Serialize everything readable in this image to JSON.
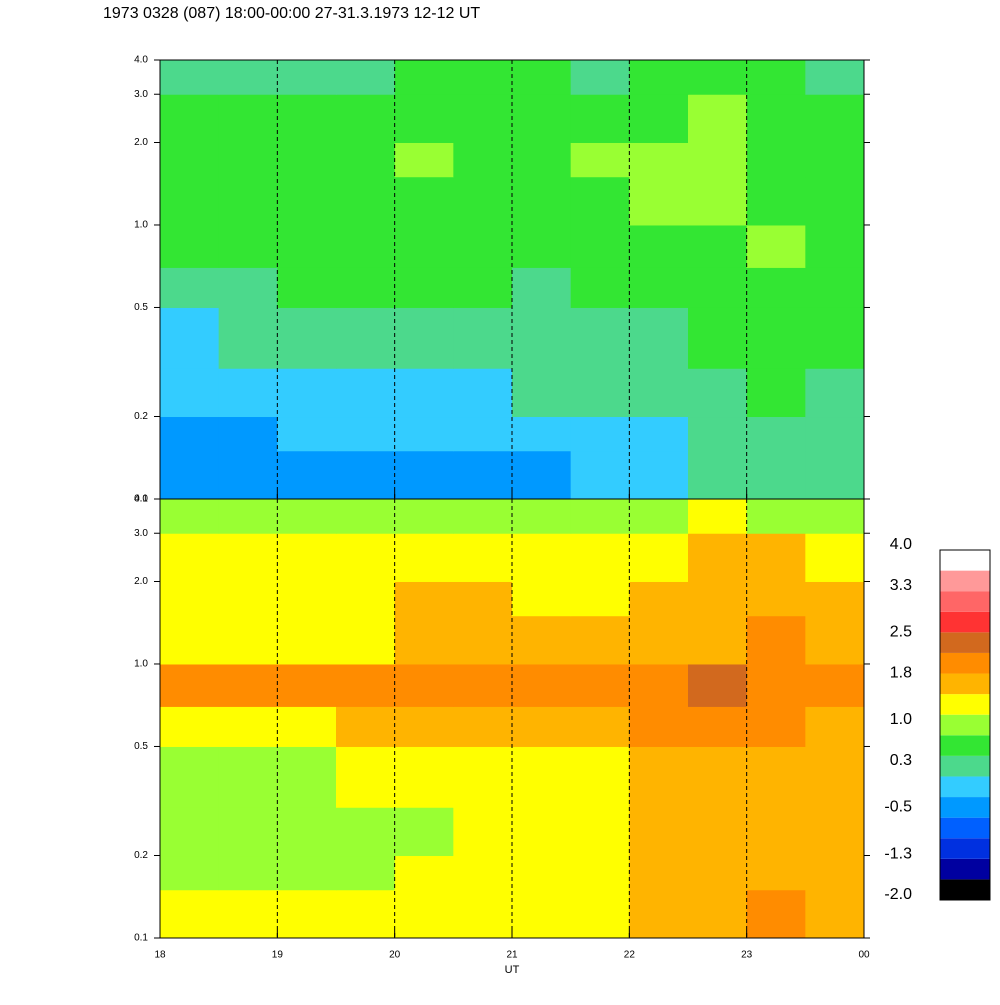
{
  "chart_data": [
    {
      "type": "heatmap",
      "title": "1973 0328 (087) 18:00-00:00 27-31.3.1973  12-12 UT",
      "xlim": [
        18,
        24
      ],
      "xticks": [
        18,
        19,
        20,
        21,
        22,
        23,
        {
          "value": 24,
          "label": "00"
        }
      ],
      "ylim": [
        0.1,
        4.0
      ],
      "ylog": true,
      "grid": true,
      "yticks": [
        0.1,
        0.2,
        0.5,
        {
          "value": 1,
          "label": "1.0"
        },
        {
          "value": 2,
          "label": "2.0"
        },
        {
          "value": 3,
          "label": "3.0"
        },
        {
          "value": 4,
          "label": "4.0"
        }
      ],
      "x_bins": [
        18,
        18.5,
        19,
        19.5,
        20,
        20.5,
        21,
        21.5,
        22,
        22.5,
        23,
        23.5,
        24
      ],
      "y_bins": [
        0.1,
        0.15,
        0.2,
        0.3,
        0.5,
        0.7,
        1.0,
        1.5,
        2.0,
        3.0,
        4.0
      ],
      "values": [
        [
          -0.3,
          -0.3,
          -0.3,
          -0.3,
          -0.3,
          -0.3,
          -0.3,
          -0.1,
          0.1,
          0.3,
          0.4,
          0.3
        ],
        [
          -0.3,
          -0.3,
          -0.2,
          -0.2,
          -0.1,
          -0.1,
          0,
          0,
          0.1,
          0.3,
          0.4,
          0.3
        ],
        [
          0,
          0,
          0.1,
          0.1,
          0.1,
          0.1,
          0.2,
          0.2,
          0.2,
          0.4,
          0.5,
          0.4
        ],
        [
          0.1,
          0.2,
          0.3,
          0.3,
          0.4,
          0.4,
          0.3,
          0.4,
          0.3,
          0.5,
          0.7,
          0.5
        ],
        [
          0.3,
          0.4,
          0.5,
          0.5,
          0.6,
          0.5,
          0.4,
          0.5,
          0.5,
          0.6,
          0.8,
          0.6
        ],
        [
          0.5,
          0.5,
          0.5,
          0.6,
          0.6,
          0.5,
          0.5,
          0.6,
          0.7,
          0.8,
          0.9,
          0.7
        ],
        [
          0.7,
          0.6,
          0.7,
          0.7,
          0.8,
          0.7,
          0.7,
          0.8,
          0.9,
          0.9,
          0.8,
          0.7
        ],
        [
          0.8,
          0.7,
          0.8,
          0.8,
          0.9,
          0.8,
          0.8,
          0.9,
          0.9,
          1.0,
          0.8,
          0.7
        ],
        [
          0.5,
          0.6,
          0.6,
          0.7,
          0.8,
          0.7,
          0.8,
          0.8,
          0.8,
          0.9,
          0.7,
          0.6
        ],
        [
          0.2,
          0.3,
          0.3,
          0.4,
          0.5,
          0.5,
          0.5,
          0.4,
          0.5,
          0.6,
          0.5,
          0.4
        ]
      ]
    },
    {
      "type": "heatmap",
      "x_label": "UT",
      "xlim": [
        18,
        24
      ],
      "xticks": [
        18,
        19,
        20,
        21,
        22,
        23,
        {
          "value": 24,
          "label": "00"
        }
      ],
      "ylim": [
        0.1,
        4.0
      ],
      "ylog": true,
      "grid": true,
      "yticks": [
        0.1,
        0.2,
        0.5,
        {
          "value": 1,
          "label": "1.0"
        },
        {
          "value": 2,
          "label": "2.0"
        },
        {
          "value": 3,
          "label": "3.0"
        },
        {
          "value": 4,
          "label": "4.0"
        }
      ],
      "x_bins": [
        18,
        18.5,
        19,
        19.5,
        20,
        20.5,
        21,
        21.5,
        22,
        22.5,
        23,
        23.5,
        24
      ],
      "y_bins": [
        0.1,
        0.15,
        0.2,
        0.3,
        0.5,
        0.7,
        1.0,
        1.5,
        2.0,
        3.0,
        4.0
      ],
      "values": [
        [
          1.2,
          1.2,
          1.2,
          1.2,
          1.2,
          1.2,
          1.3,
          1.4,
          1.7,
          1.8,
          1.9,
          1.8
        ],
        [
          1.1,
          1.0,
          1.1,
          1.1,
          1.2,
          1.2,
          1.3,
          1.4,
          1.6,
          1.8,
          1.8,
          1.7
        ],
        [
          1.0,
          0.9,
          1.0,
          1.0,
          1.1,
          1.2,
          1.3,
          1.4,
          1.6,
          1.7,
          1.7,
          1.6
        ],
        [
          1.1,
          1.0,
          1.1,
          1.2,
          1.3,
          1.4,
          1.4,
          1.5,
          1.7,
          1.8,
          1.7,
          1.6
        ],
        [
          1.5,
          1.4,
          1.5,
          1.6,
          1.6,
          1.7,
          1.7,
          1.8,
          1.9,
          2.2,
          1.9,
          1.8
        ],
        [
          2.0,
          2.0,
          2.1,
          2.2,
          2.2,
          2.2,
          2.2,
          2.2,
          2.1,
          2.3,
          2.2,
          2.1
        ],
        [
          1.5,
          1.4,
          1.5,
          1.5,
          1.6,
          1.6,
          1.6,
          1.6,
          1.7,
          1.8,
          1.9,
          1.8
        ],
        [
          1.4,
          1.4,
          1.5,
          1.5,
          1.6,
          1.6,
          1.5,
          1.5,
          1.6,
          1.7,
          1.8,
          1.8
        ],
        [
          1.3,
          1.3,
          1.4,
          1.4,
          1.5,
          1.5,
          1.4,
          1.4,
          1.5,
          1.6,
          1.6,
          1.5
        ],
        [
          0.9,
          0.9,
          1.0,
          1.0,
          1.1,
          1.1,
          1.0,
          1.0,
          1.1,
          1.2,
          1.1,
          1.0
        ]
      ],
      "colorbar": {
        "clim": [
          -2,
          4
        ],
        "colors": [
          "#000000",
          "#0000a0",
          "#0030e0",
          "#0060ff",
          "#0099ff",
          "#33ccff",
          "#4cd98c",
          "#33e633",
          "#99ff33",
          "#ffff00",
          "#ffb400",
          "#ff8c00",
          "#d2691e",
          "#ff3333",
          "#ff6666",
          "#ff9999",
          "#ffffff"
        ],
        "ticks": [
          {
            "value": 4,
            "label": "4.0"
          },
          3.3,
          2.5,
          1.8,
          {
            "value": 1,
            "label": "1.0"
          },
          0.3,
          -0.5,
          -1.3,
          {
            "value": -2,
            "label": "-2.0"
          }
        ]
      }
    }
  ]
}
